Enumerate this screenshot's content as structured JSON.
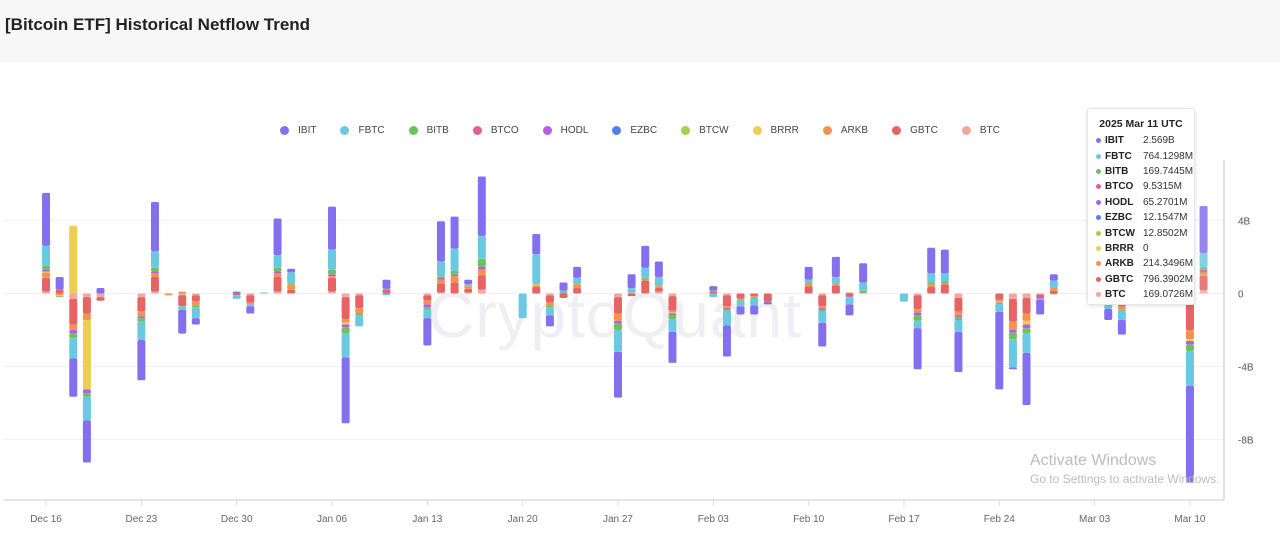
{
  "header": {
    "title": "[Bitcoin ETF] Historical Netflow Trend"
  },
  "watermark": "CryptoQuant",
  "os_overlay": {
    "line1": "Activate Windows",
    "line2": "Go to Settings to activate Windows."
  },
  "chart_data": {
    "type": "bar",
    "stacked": true,
    "title": "",
    "xlabel": "",
    "ylabel": "",
    "legend_position": "top",
    "grid": true,
    "xlim": [
      "2024-12-14",
      "2025-03-13"
    ],
    "ylim": [
      -11.3,
      7.3
    ],
    "y_unit": "B",
    "y_ticks": [
      {
        "value": 4,
        "label": "4B"
      },
      {
        "value": 0,
        "label": "0"
      },
      {
        "value": -4,
        "label": "-4B"
      },
      {
        "value": -8,
        "label": "-8B"
      }
    ],
    "x_ticks": [
      {
        "date": "2024-12-16",
        "label": "Dec 16"
      },
      {
        "date": "2024-12-23",
        "label": "Dec 23"
      },
      {
        "date": "2024-12-30",
        "label": "Dec 30"
      },
      {
        "date": "2025-01-06",
        "label": "Jan 06"
      },
      {
        "date": "2025-01-13",
        "label": "Jan 13"
      },
      {
        "date": "2025-01-20",
        "label": "Jan 20"
      },
      {
        "date": "2025-01-27",
        "label": "Jan 27"
      },
      {
        "date": "2025-02-03",
        "label": "Feb 03"
      },
      {
        "date": "2025-02-10",
        "label": "Feb 10"
      },
      {
        "date": "2025-02-17",
        "label": "Feb 17"
      },
      {
        "date": "2025-02-24",
        "label": "Feb 24"
      },
      {
        "date": "2025-03-03",
        "label": "Mar 03"
      },
      {
        "date": "2025-03-10",
        "label": "Mar 10"
      }
    ],
    "series": [
      {
        "name": "IBIT",
        "color": "#8470ee"
      },
      {
        "name": "FBTC",
        "color": "#6ac8e2"
      },
      {
        "name": "BITB",
        "color": "#6cc160"
      },
      {
        "name": "BTCO",
        "color": "#e0609a"
      },
      {
        "name": "HODL",
        "color": "#b65ee6"
      },
      {
        "name": "EZBC",
        "color": "#5080ec"
      },
      {
        "name": "BTCW",
        "color": "#a6d04c"
      },
      {
        "name": "BRRR",
        "color": "#eecd54"
      },
      {
        "name": "ARKB",
        "color": "#f29450"
      },
      {
        "name": "GBTC",
        "color": "#e56464"
      },
      {
        "name": "BTC",
        "color": "#f4a7a0"
      }
    ],
    "days": [
      {
        "date": "2024-12-16",
        "values": [
          2.9,
          1.1,
          0.2,
          0,
          0.1,
          0,
          0,
          0.05,
          0.3,
          0.75,
          0.1
        ]
      },
      {
        "date": "2024-12-17",
        "values": [
          0.7,
          0,
          -0.05,
          0,
          0,
          0,
          0,
          -0.05,
          -0.1,
          0.2,
          0
        ]
      },
      {
        "date": "2024-12-18",
        "values": [
          -2.1,
          -1.1,
          -0.25,
          0,
          -0.2,
          0,
          0,
          3.7,
          -0.3,
          -1.4,
          -0.3
        ]
      },
      {
        "date": "2024-12-19",
        "values": [
          -2.3,
          -1.3,
          -0.2,
          0,
          -0.2,
          0,
          0,
          -3.8,
          -0.35,
          -0.9,
          -0.2
        ]
      },
      {
        "date": "2024-12-20",
        "values": [
          0.3,
          0,
          0,
          0,
          0,
          0,
          0,
          0,
          0,
          -0.2,
          -0.2
        ]
      },
      {
        "date": "2024-12-23",
        "values": [
          -2.2,
          -1.0,
          -0.2,
          0,
          -0.1,
          0,
          0,
          0,
          -0.25,
          -0.8,
          -0.2
        ]
      },
      {
        "date": "2024-12-24",
        "values": [
          2.7,
          0.9,
          0.2,
          0,
          0.1,
          0,
          0,
          0,
          0.2,
          0.8,
          0.1
        ]
      },
      {
        "date": "2024-12-25",
        "values": [
          0,
          0,
          0,
          0,
          0,
          0,
          0,
          0,
          -0.1,
          0,
          0
        ]
      },
      {
        "date": "2024-12-26",
        "values": [
          -1.3,
          -0.2,
          0,
          0,
          0,
          0,
          0,
          0,
          0.1,
          -0.6,
          -0.1
        ]
      },
      {
        "date": "2024-12-27",
        "values": [
          -0.35,
          -0.6,
          -0.1,
          0,
          0,
          0,
          0,
          0,
          -0.2,
          -0.35,
          -0.1
        ]
      },
      {
        "date": "2024-12-30",
        "values": [
          0.1,
          -0.2,
          0,
          0,
          0,
          0,
          0,
          0,
          0,
          -0.1,
          0
        ]
      },
      {
        "date": "2024-12-31",
        "values": [
          -0.4,
          -0.1,
          0,
          0,
          0,
          0,
          0,
          0,
          -0.1,
          -0.4,
          -0.1
        ]
      },
      {
        "date": "2025-01-01",
        "values": [
          0,
          0.05,
          0,
          0,
          0,
          0,
          0,
          0,
          0,
          0,
          0
        ]
      },
      {
        "date": "2025-01-02",
        "values": [
          2.0,
          0.7,
          0.2,
          0,
          0.1,
          0,
          0,
          0,
          0.2,
          0.8,
          0.1
        ]
      },
      {
        "date": "2025-01-03",
        "values": [
          0.2,
          0.6,
          0.05,
          0,
          0,
          0,
          0,
          0,
          0.3,
          0.2,
          0
        ]
      },
      {
        "date": "2025-01-06",
        "values": [
          2.35,
          1.1,
          0.25,
          0,
          0.1,
          0,
          0,
          0,
          0.1,
          0.75,
          0.1
        ]
      },
      {
        "date": "2025-01-07",
        "values": [
          -3.6,
          -1.3,
          -0.35,
          0,
          -0.15,
          0,
          0,
          -0.1,
          -0.2,
          -1.2,
          -0.2
        ]
      },
      {
        "date": "2025-01-08",
        "values": [
          0,
          -0.6,
          -0.1,
          0,
          0,
          0,
          0,
          0,
          -0.3,
          -0.7,
          -0.1
        ]
      },
      {
        "date": "2025-01-10",
        "values": [
          0.5,
          -0.1,
          0.05,
          0,
          0,
          0,
          0,
          0,
          0,
          0.2,
          0
        ]
      },
      {
        "date": "2025-01-13",
        "values": [
          -1.5,
          -0.5,
          -0.1,
          0,
          -0.15,
          0,
          0,
          0,
          -0.2,
          -0.3,
          -0.1
        ]
      },
      {
        "date": "2025-01-14",
        "values": [
          2.2,
          0.8,
          0.1,
          0,
          0.1,
          0,
          0,
          0,
          0.2,
          0.5,
          0.05
        ]
      },
      {
        "date": "2025-01-15",
        "values": [
          1.75,
          1.2,
          0.2,
          0,
          0.1,
          0,
          0,
          0,
          0.35,
          0.6,
          0
        ]
      },
      {
        "date": "2025-01-16",
        "values": [
          0.25,
          0.1,
          0,
          0,
          0,
          0,
          0,
          0,
          0.15,
          0.2,
          0.05
        ]
      },
      {
        "date": "2025-01-17",
        "values": [
          3.25,
          1.25,
          0.45,
          0,
          0.15,
          0,
          0,
          0,
          0.3,
          0.8,
          0.2
        ]
      },
      {
        "date": "2025-01-20",
        "values": [
          0,
          -1.35,
          0,
          0,
          0,
          0,
          0,
          0,
          0,
          0,
          0
        ]
      },
      {
        "date": "2025-01-21",
        "values": [
          1.1,
          1.6,
          0.05,
          0,
          0,
          0,
          0,
          0.05,
          0.1,
          0.35,
          0
        ]
      },
      {
        "date": "2025-01-22",
        "values": [
          -0.6,
          -0.45,
          -0.1,
          0,
          0,
          0,
          0,
          0,
          -0.15,
          -0.4,
          -0.1
        ]
      },
      {
        "date": "2025-01-23",
        "values": [
          0.45,
          0.1,
          0.05,
          0,
          0,
          0,
          0,
          0,
          0,
          -0.25,
          0
        ]
      },
      {
        "date": "2025-01-24",
        "values": [
          0.6,
          0.3,
          0.05,
          0,
          0,
          0,
          0,
          0,
          0.2,
          0.3,
          0
        ]
      },
      {
        "date": "2025-01-27",
        "values": [
          -2.5,
          -1.2,
          -0.35,
          0,
          -0.15,
          0,
          0,
          0,
          -0.4,
          -0.9,
          -0.2
        ]
      },
      {
        "date": "2025-01-28",
        "values": [
          0.75,
          0.25,
          0,
          0,
          0,
          0,
          0,
          0,
          0,
          -0.15,
          0.05
        ]
      },
      {
        "date": "2025-01-29",
        "values": [
          1.2,
          0.55,
          0.05,
          0,
          0,
          0,
          0,
          0,
          0.1,
          0.7,
          0
        ]
      },
      {
        "date": "2025-01-30",
        "values": [
          0.85,
          0.5,
          0,
          0,
          0,
          0,
          0,
          0,
          0.1,
          0.2,
          0.1
        ]
      },
      {
        "date": "2025-01-31",
        "values": [
          -1.7,
          -0.7,
          -0.2,
          0,
          -0.1,
          0,
          0,
          -0.05,
          -0.1,
          -0.8,
          -0.15
        ]
      },
      {
        "date": "2025-02-03",
        "values": [
          0.25,
          -0.2,
          0.05,
          0,
          0,
          0,
          0,
          0,
          0,
          0.1,
          0
        ]
      },
      {
        "date": "2025-02-04",
        "values": [
          -1.7,
          -0.8,
          -0.05,
          0,
          -0.1,
          0,
          0,
          0,
          -0.1,
          -0.6,
          -0.1
        ]
      },
      {
        "date": "2025-02-05",
        "values": [
          -0.45,
          -0.3,
          -0.05,
          0,
          0,
          0,
          0,
          0,
          -0.05,
          -0.3,
          0
        ]
      },
      {
        "date": "2025-02-06",
        "values": [
          -0.5,
          -0.4,
          -0.05,
          0,
          0,
          0,
          0,
          0,
          -0.05,
          -0.15,
          0
        ]
      },
      {
        "date": "2025-02-07",
        "values": [
          -0.15,
          0,
          0,
          0,
          0,
          0,
          0,
          0,
          0,
          -0.45,
          0
        ]
      },
      {
        "date": "2025-02-10",
        "values": [
          0.7,
          0.15,
          0.05,
          0,
          0,
          0,
          0,
          0,
          0.15,
          0.4,
          0
        ]
      },
      {
        "date": "2025-02-11",
        "values": [
          -1.3,
          -0.6,
          -0.1,
          0,
          -0.1,
          0,
          0,
          0,
          -0.1,
          -0.6,
          -0.1
        ]
      },
      {
        "date": "2025-02-12",
        "values": [
          1.1,
          0.35,
          0.05,
          0,
          0,
          0,
          0,
          0,
          0.05,
          0.45,
          0
        ]
      },
      {
        "date": "2025-02-13",
        "values": [
          -0.6,
          -0.4,
          0,
          0,
          -0.05,
          0,
          0,
          0,
          0.05,
          -0.15,
          0
        ]
      },
      {
        "date": "2025-02-14",
        "values": [
          1.05,
          0.45,
          0.1,
          0,
          0,
          0,
          0,
          0,
          0.05,
          0,
          0
        ]
      },
      {
        "date": "2025-02-17",
        "values": [
          0,
          -0.45,
          0,
          0,
          0,
          0,
          0,
          0,
          0,
          0,
          0
        ]
      },
      {
        "date": "2025-02-18",
        "values": [
          -2.25,
          -0.4,
          -0.3,
          0,
          -0.15,
          0,
          0,
          0,
          -0.2,
          -0.75,
          -0.1
        ]
      },
      {
        "date": "2025-02-19",
        "values": [
          1.4,
          0.5,
          0.1,
          0,
          0,
          0,
          0,
          0,
          0.15,
          0.35,
          0
        ]
      },
      {
        "date": "2025-02-20",
        "values": [
          1.3,
          0.45,
          0.1,
          0,
          0,
          0,
          0,
          0,
          0.05,
          0.5,
          0
        ]
      },
      {
        "date": "2025-02-21",
        "values": [
          -2.2,
          -0.65,
          -0.15,
          0,
          -0.1,
          0,
          0,
          0,
          -0.2,
          -0.75,
          -0.25
        ]
      },
      {
        "date": "2025-02-24",
        "values": [
          -4.25,
          -0.45,
          0,
          0,
          -0.05,
          0,
          0,
          -0.05,
          -0.1,
          -0.35,
          0
        ]
      },
      {
        "date": "2025-02-25",
        "values": [
          -0.1,
          -1.55,
          -0.35,
          0,
          -0.15,
          0,
          0,
          0,
          -0.45,
          -1.25,
          -0.3
        ]
      },
      {
        "date": "2025-02-26",
        "values": [
          -2.85,
          -1.05,
          -0.3,
          0,
          -0.2,
          0,
          0,
          -0.2,
          -0.4,
          -0.85,
          -0.25
        ]
      },
      {
        "date": "2025-02-27",
        "values": [
          -0.8,
          -0.05,
          0,
          0,
          -0.05,
          0,
          0,
          0,
          0,
          -0.2,
          -0.05
        ]
      },
      {
        "date": "2025-02-28",
        "values": [
          0.35,
          0.4,
          -0.05,
          0,
          0,
          0,
          0,
          0,
          0.15,
          0.15,
          0
        ]
      },
      {
        "date": "2025-03-03",
        "values": [
          0.8,
          0.3,
          0,
          0,
          0,
          0,
          0,
          0,
          0.1,
          0.3,
          0
        ]
      },
      {
        "date": "2025-03-04",
        "values": [
          -0.6,
          -0.3,
          0,
          0,
          0,
          0,
          0,
          0,
          -0.15,
          -0.4,
          0
        ]
      },
      {
        "date": "2025-03-05",
        "values": [
          -0.8,
          -0.5,
          -0.05,
          0,
          0,
          0,
          0,
          0,
          -0.2,
          -0.5,
          -0.2
        ]
      },
      {
        "date": "2025-03-10",
        "values": [
          -5.3,
          -1.9,
          -0.35,
          0,
          -0.2,
          0,
          0,
          -0.1,
          -0.5,
          -1.7,
          -0.3
        ]
      },
      {
        "date": "2025-03-11",
        "values": [
          2.569,
          0.7641298,
          0.1697445,
          0.0095315,
          0.0652701,
          0.0121547,
          0.0128502,
          0,
          0.2143496,
          0.7963902,
          0.1690726
        ],
        "highlighted": true
      }
    ]
  },
  "tooltip": {
    "title": "2025 Mar 11 UTC",
    "rows": [
      {
        "name": "IBIT",
        "value": "2.569B",
        "color": "#8470ee"
      },
      {
        "name": "FBTC",
        "value": "764.1298M",
        "color": "#6ac8e2"
      },
      {
        "name": "BITB",
        "value": "169.7445M",
        "color": "#6cc160"
      },
      {
        "name": "BTCO",
        "value": "9.5315M",
        "color": "#e0609a"
      },
      {
        "name": "HODL",
        "value": "65.2701M",
        "color": "#b65ee6"
      },
      {
        "name": "EZBC",
        "value": "12.1547M",
        "color": "#5080ec"
      },
      {
        "name": "BTCW",
        "value": "12.8502M",
        "color": "#a6d04c"
      },
      {
        "name": "BRRR",
        "value": "0",
        "color": "#eecd54"
      },
      {
        "name": "ARKB",
        "value": "214.3496M",
        "color": "#f29450"
      },
      {
        "name": "GBTC",
        "value": "796.3902M",
        "color": "#e56464"
      },
      {
        "name": "BTC",
        "value": "169.0726M",
        "color": "#f4a7a0"
      }
    ]
  }
}
